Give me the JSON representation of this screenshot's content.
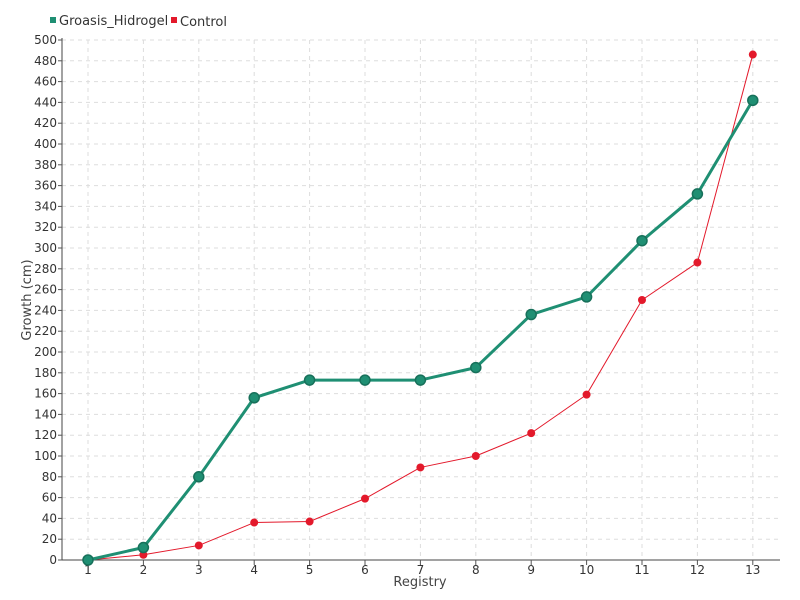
{
  "chart_data": {
    "type": "line",
    "categories": [
      "1",
      "2",
      "3",
      "4",
      "5",
      "6",
      "7",
      "8",
      "9",
      "10",
      "11",
      "12",
      "13"
    ],
    "xlabel": "Registry",
    "ylabel": "Growth (cm)",
    "ylim": [
      0,
      500
    ],
    "ytick_step": 20,
    "grid": true,
    "legend_position": "top-left",
    "series": [
      {
        "name": "Groasis_Hidrogel",
        "color": "#1f8f73",
        "values": [
          0,
          12,
          80,
          156,
          173,
          173,
          173,
          185,
          236,
          253,
          307,
          352,
          442
        ]
      },
      {
        "name": "Control",
        "color": "#e3192b",
        "values": [
          0,
          5,
          14,
          36,
          37,
          59,
          89,
          100,
          122,
          159,
          250,
          286,
          486
        ]
      }
    ]
  }
}
